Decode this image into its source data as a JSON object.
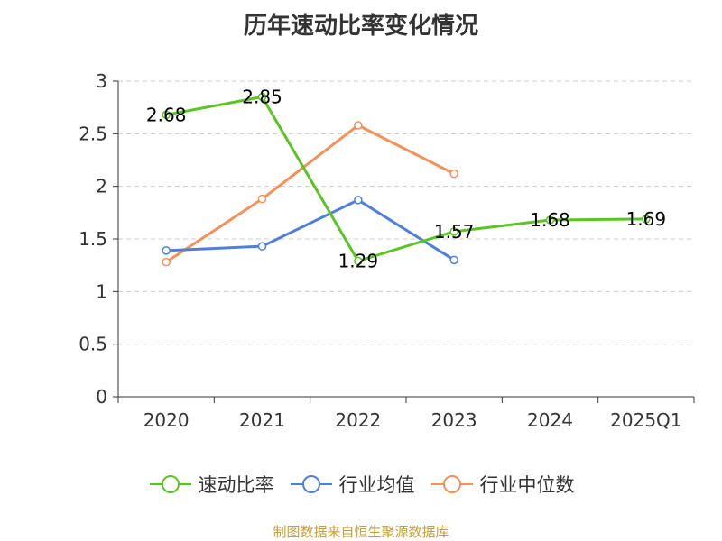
{
  "chart_data": {
    "type": "line",
    "title": "历年速动比率变化情况",
    "categories": [
      "2020",
      "2021",
      "2022",
      "2023",
      "2024",
      "2025Q1"
    ],
    "y_ticks": [
      "0",
      "0.5",
      "1",
      "1.5",
      "2",
      "2.5",
      "3"
    ],
    "ylim": [
      0,
      3
    ],
    "xlabel": "",
    "ylabel": "",
    "grid": true,
    "legend_position": "bottom",
    "series": [
      {
        "name": "速动比率",
        "color": "#5bc425",
        "values": [
          2.68,
          2.85,
          1.29,
          1.57,
          1.68,
          1.69
        ],
        "labels": [
          "2.68",
          "2.85",
          "1.29",
          "1.57",
          "1.68",
          "1.69"
        ],
        "show_labels": true
      },
      {
        "name": "行业均值",
        "color": "#4f7fde",
        "values": [
          1.39,
          1.43,
          1.87,
          1.3,
          null,
          null
        ],
        "show_labels": false
      },
      {
        "name": "行业中位数",
        "color": "#f5905a",
        "values": [
          1.28,
          1.88,
          2.58,
          2.12,
          null,
          null
        ],
        "show_labels": false
      }
    ]
  },
  "footer": {
    "source": "制图数据来自恒生聚源数据库"
  }
}
